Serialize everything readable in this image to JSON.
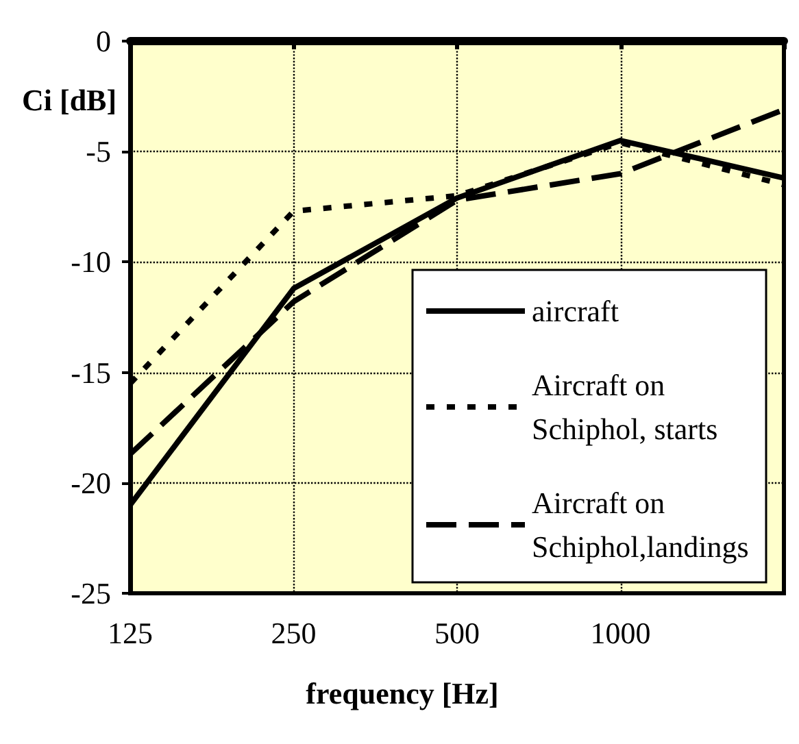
{
  "chart_data": {
    "type": "line",
    "xlabel": "frequency [Hz]",
    "ylabel": "Ci [dB]",
    "categories": [
      "125",
      "250",
      "500",
      "1000",
      null
    ],
    "series": [
      {
        "name": "aircraft",
        "color": "#000000",
        "line_style": "solid",
        "values": [
          -21,
          -11.2,
          -7.1,
          -4.5,
          -6.2
        ]
      },
      {
        "name": "Aircraft on Schiphol, starts",
        "color": "#000000",
        "line_style": "dotted",
        "values": [
          -15.5,
          -7.7,
          -7.0,
          -4.6,
          -6.5
        ]
      },
      {
        "name": "Aircraft on Schiphol,landings",
        "color": "#000000",
        "line_style": "dashed",
        "values": [
          -18.7,
          -11.8,
          -7.2,
          -6.0,
          -3.1
        ]
      }
    ],
    "ylim": [
      -25,
      0
    ],
    "yticks": [
      -25,
      -20,
      -15,
      -10,
      -5,
      0
    ],
    "grid": true,
    "legend": "bottom right",
    "marker": "none"
  }
}
